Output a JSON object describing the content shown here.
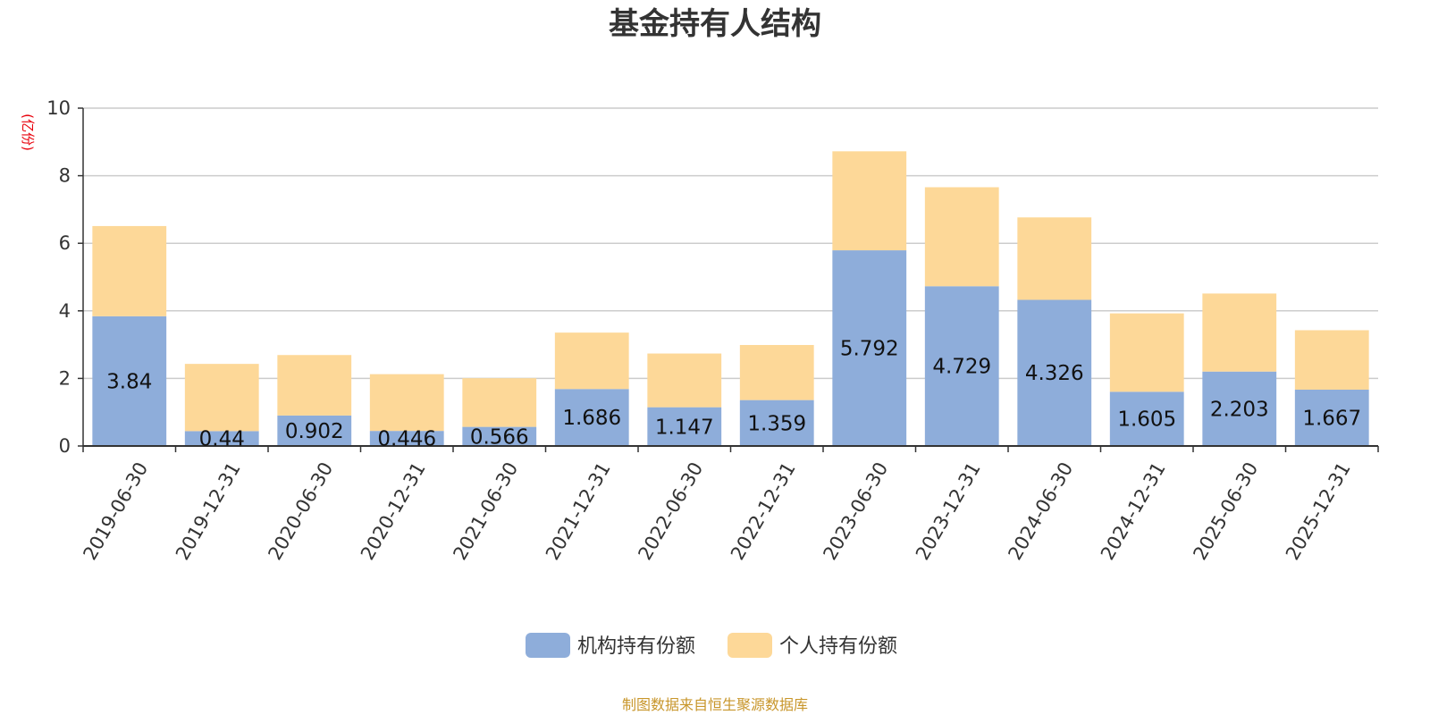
{
  "colors": {
    "institutional": "#8eadda",
    "individual": "#fdd898",
    "axis": "#333333",
    "grid": "#cccccc",
    "unit": "#e8000b",
    "source": "#c8962b"
  },
  "chart_data": {
    "type": "bar",
    "stacked": true,
    "title": "基金持有人结构",
    "ylabel": "(亿份)",
    "xlabel": "",
    "ylim": [
      0,
      10
    ],
    "yticks": [
      0,
      2,
      4,
      6,
      8,
      10
    ],
    "grid": true,
    "legend_position": "bottom",
    "categories": [
      "2019-06-30",
      "2019-12-31",
      "2020-06-30",
      "2020-12-31",
      "2021-06-30",
      "2021-12-31",
      "2022-06-30",
      "2022-12-31",
      "2023-06-30",
      "2023-12-31",
      "2024-06-30",
      "2024-12-31",
      "2025-06-30",
      "2025-12-31"
    ],
    "series": [
      {
        "name": "机构持有份额",
        "values": [
          3.84,
          0.44,
          0.902,
          0.446,
          0.566,
          1.686,
          1.147,
          1.359,
          5.792,
          4.729,
          4.326,
          1.605,
          2.203,
          1.667
        ],
        "labels": [
          "3.84",
          "0.44",
          "0.902",
          "0.446",
          "0.566",
          "1.686",
          "1.147",
          "1.359",
          "5.792",
          "4.729",
          "4.326",
          "1.605",
          "2.203",
          "1.667"
        ]
      },
      {
        "name": "个人持有份额",
        "values": [
          2.67,
          1.99,
          1.79,
          1.68,
          1.44,
          1.67,
          1.59,
          1.63,
          2.93,
          2.93,
          2.44,
          2.32,
          2.31,
          1.76
        ]
      }
    ],
    "source": "制图数据来自恒生聚源数据库"
  }
}
